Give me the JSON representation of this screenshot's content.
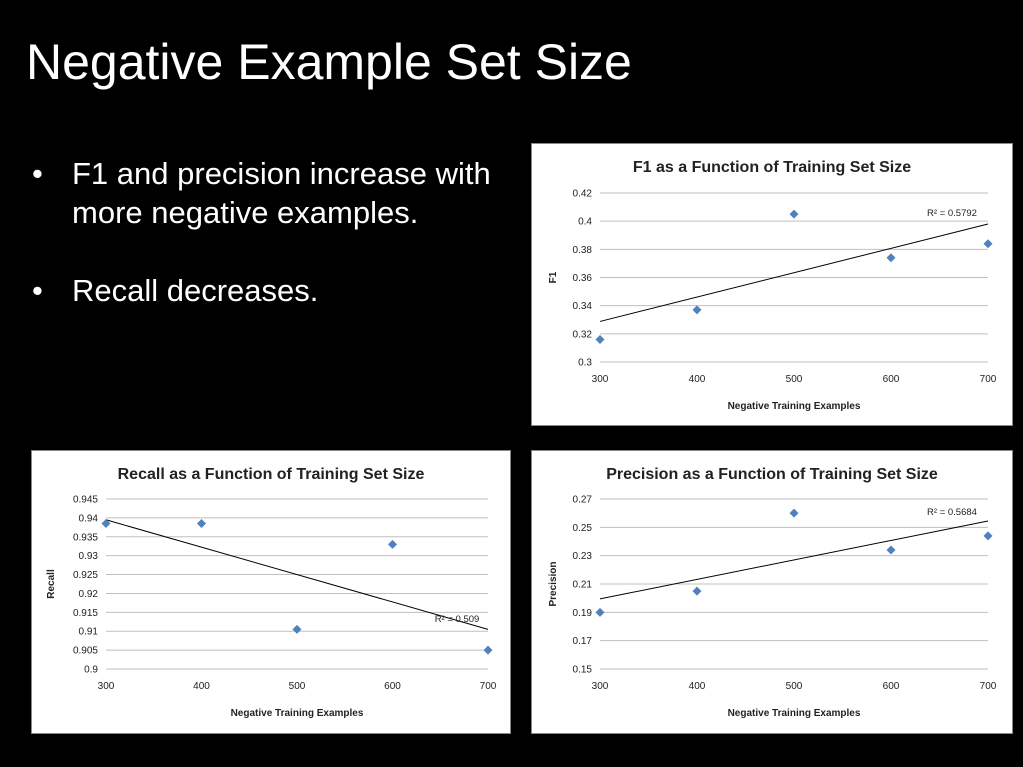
{
  "slide": {
    "title": "Negative Example Set Size",
    "bullets": [
      "F1 and precision increase with more negative examples.",
      "Recall decreases."
    ],
    "bullet_glyph": "•"
  },
  "colors": {
    "background": "#000000",
    "marker": "#4F81BD",
    "trend": "#000000",
    "grid": "#BFBFBF"
  },
  "chart_data": [
    {
      "id": "f1",
      "type": "scatter",
      "title": "F1 as a Function of Training Set Size",
      "xlabel": "Negative Training Examples",
      "ylabel": "F1",
      "x": [
        300,
        400,
        500,
        600,
        700
      ],
      "y": [
        0.316,
        0.337,
        0.405,
        0.374,
        0.384
      ],
      "xlim": [
        300,
        700
      ],
      "ylim": [
        0.3,
        0.42
      ],
      "xticks": [
        300,
        400,
        500,
        600,
        700
      ],
      "yticks": [
        0.3,
        0.32,
        0.34,
        0.36,
        0.38,
        0.4,
        0.42
      ],
      "ytick_labels": [
        "0.3",
        "0.32",
        "0.34",
        "0.36",
        "0.38",
        "0.4",
        "0.42"
      ],
      "trendline": {
        "type": "linear",
        "y_start": 0.3288,
        "y_end": 0.398
      },
      "r2_label": "R² = 0.5792",
      "grid": true,
      "legend": "none"
    },
    {
      "id": "recall",
      "type": "scatter",
      "title": "Recall as a Function of Training Set Size",
      "xlabel": "Negative Training Examples",
      "ylabel": "Recall",
      "x": [
        300,
        400,
        500,
        600,
        700
      ],
      "y": [
        0.9385,
        0.9385,
        0.9105,
        0.933,
        0.905
      ],
      "xlim": [
        300,
        700
      ],
      "ylim": [
        0.9,
        0.945
      ],
      "xticks": [
        300,
        400,
        500,
        600,
        700
      ],
      "yticks": [
        0.9,
        0.905,
        0.91,
        0.915,
        0.92,
        0.925,
        0.93,
        0.935,
        0.94,
        0.945
      ],
      "ytick_labels": [
        "0.9",
        "0.905",
        "0.91",
        "0.915",
        "0.92",
        "0.925",
        "0.93",
        "0.935",
        "0.94",
        "0.945"
      ],
      "trendline": {
        "type": "linear",
        "y_start": 0.9395,
        "y_end": 0.9105
      },
      "r2_label": "R² = 0.509",
      "grid": true,
      "legend": "none"
    },
    {
      "id": "precision",
      "type": "scatter",
      "title": "Precision as a Function of Training Set Size",
      "xlabel": "Negative Training Examples",
      "ylabel": "Precision",
      "x": [
        300,
        400,
        500,
        600,
        700
      ],
      "y": [
        0.19,
        0.205,
        0.26,
        0.234,
        0.244
      ],
      "xlim": [
        300,
        700
      ],
      "ylim": [
        0.15,
        0.27
      ],
      "xticks": [
        300,
        400,
        500,
        600,
        700
      ],
      "yticks": [
        0.15,
        0.17,
        0.19,
        0.21,
        0.23,
        0.25,
        0.27
      ],
      "ytick_labels": [
        "0.15",
        "0.17",
        "0.19",
        "0.21",
        "0.23",
        "0.25",
        "0.27"
      ],
      "trendline": {
        "type": "linear",
        "y_start": 0.1995,
        "y_end": 0.2545
      },
      "r2_label": "R² = 0.5684",
      "grid": true,
      "legend": "none"
    }
  ]
}
